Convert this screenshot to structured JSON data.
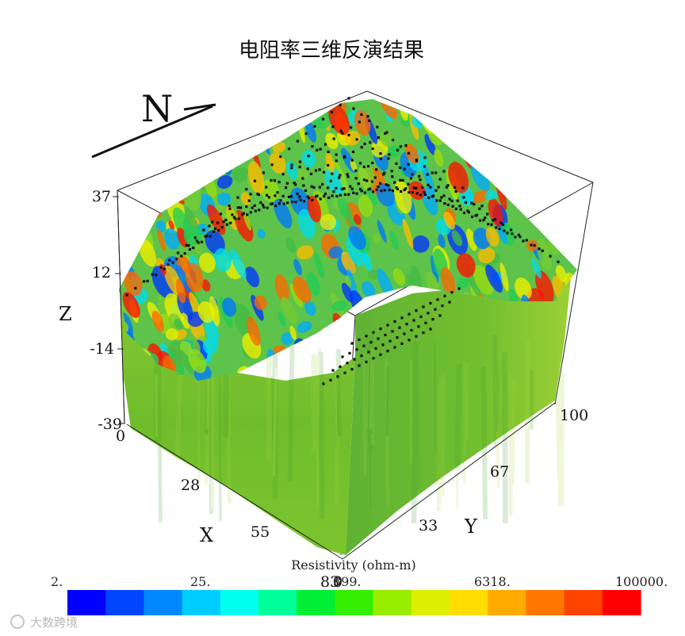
{
  "chart_data": {
    "type": "heatmap",
    "title": "电阻率三维反演结果",
    "north_label": "N",
    "axes": {
      "x": {
        "label": "X",
        "ticks": [
          "0",
          "28",
          "55",
          "83"
        ],
        "range": [
          0,
          83
        ]
      },
      "y": {
        "label": "Y",
        "ticks": [
          "0",
          "33",
          "67",
          "100"
        ],
        "range": [
          0,
          100
        ]
      },
      "z": {
        "label": "Z",
        "ticks": [
          "37",
          "12",
          "-14",
          "-39"
        ],
        "range": [
          -39,
          37
        ]
      }
    },
    "colorbar": {
      "title": "Resistivity (ohm-m)",
      "tick_labels": [
        "2.",
        "25.",
        "399.",
        "6318.",
        "100000."
      ],
      "scale": "log",
      "range": [
        2,
        100000
      ],
      "colors": [
        "#0000ff",
        "#0044ff",
        "#0088ff",
        "#00ccff",
        "#00ffee",
        "#00ff99",
        "#00ee33",
        "#33ee00",
        "#99ee00",
        "#ddee00",
        "#ffdd00",
        "#ffaa00",
        "#ff7700",
        "#ff4400",
        "#ff0000"
      ]
    },
    "colors": {
      "background_green": "#79c32a",
      "mid_green": "#5fb33a"
    }
  },
  "watermark": "大数跨境"
}
